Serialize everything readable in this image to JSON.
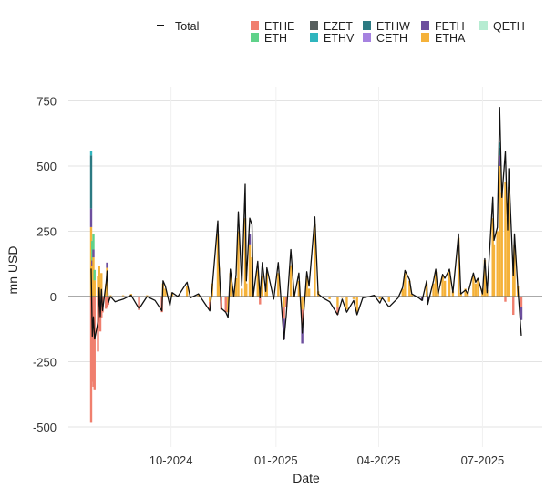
{
  "chart_data": {
    "type": "bar",
    "subtype": "stacked bar with total line",
    "xlabel": "Date",
    "ylabel": "mn USD",
    "ylim": [
      -560,
      800
    ],
    "yticks": [
      -500,
      -250,
      0,
      250,
      500,
      750
    ],
    "xticks": [
      {
        "date": "2024-10-01",
        "label": "10-2024"
      },
      {
        "date": "2025-01-01",
        "label": "01-2025"
      },
      {
        "date": "2025-04-01",
        "label": "04-2025"
      },
      {
        "date": "2025-07-01",
        "label": "07-2025"
      }
    ],
    "grid": true,
    "legend_position": "top",
    "legend": {
      "line": {
        "name": "Total",
        "color": "#111111"
      },
      "items": [
        {
          "name": "ETHE",
          "color": "#f07f6e"
        },
        {
          "name": "EZET",
          "color": "#575f5e"
        },
        {
          "name": "ETHW",
          "color": "#2c7a82"
        },
        {
          "name": "FETH",
          "color": "#6d4f9e"
        },
        {
          "name": "QETH",
          "color": "#b6ecd2"
        },
        {
          "name": "ETH",
          "color": "#5fd28a"
        },
        {
          "name": "ETHV",
          "color": "#2fb5be"
        },
        {
          "name": "CETH",
          "color": "#a682e0"
        },
        {
          "name": "ETHA",
          "color": "#f5b23a"
        }
      ]
    },
    "dates": [
      "2024-07-23",
      "2024-07-24",
      "2024-07-25",
      "2024-07-26",
      "2024-07-29",
      "2024-07-30",
      "2024-07-31",
      "2024-08-01",
      "2024-08-02",
      "2024-08-05",
      "2024-08-06",
      "2024-08-07",
      "2024-08-09",
      "2024-08-13",
      "2024-08-20",
      "2024-08-27",
      "2024-09-03",
      "2024-09-10",
      "2024-09-17",
      "2024-09-23",
      "2024-09-24",
      "2024-09-26",
      "2024-09-30",
      "2024-10-02",
      "2024-10-07",
      "2024-10-15",
      "2024-10-18",
      "2024-10-25",
      "2024-11-04",
      "2024-11-06",
      "2024-11-11",
      "2024-11-12",
      "2024-11-14",
      "2024-11-18",
      "2024-11-20",
      "2024-11-22",
      "2024-11-25",
      "2024-11-27",
      "2024-11-29",
      "2024-12-02",
      "2024-12-05",
      "2024-12-06",
      "2024-12-09",
      "2024-12-11",
      "2024-12-12",
      "2024-12-16",
      "2024-12-18",
      "2024-12-20",
      "2024-12-23",
      "2024-12-24",
      "2024-12-30",
      "2025-01-03",
      "2025-01-08",
      "2025-01-10",
      "2025-01-14",
      "2025-01-17",
      "2025-01-21",
      "2025-01-24",
      "2025-01-28",
      "2025-01-30",
      "2025-02-04",
      "2025-02-07",
      "2025-02-11",
      "2025-02-17",
      "2025-02-24",
      "2025-02-28",
      "2025-03-04",
      "2025-03-10",
      "2025-03-13",
      "2025-03-18",
      "2025-03-24",
      "2025-03-28",
      "2025-04-02",
      "2025-04-04",
      "2025-04-10",
      "2025-04-18",
      "2025-04-22",
      "2025-04-24",
      "2025-04-28",
      "2025-04-30",
      "2025-05-06",
      "2025-05-09",
      "2025-05-13",
      "2025-05-14",
      "2025-05-19",
      "2025-05-21",
      "2025-05-23",
      "2025-05-27",
      "2025-05-29",
      "2025-06-02",
      "2025-06-05",
      "2025-06-10",
      "2025-06-12",
      "2025-06-16",
      "2025-06-18",
      "2025-06-23",
      "2025-06-25",
      "2025-06-27",
      "2025-07-01",
      "2025-07-03",
      "2025-07-05",
      "2025-07-10",
      "2025-07-11",
      "2025-07-14",
      "2025-07-16",
      "2025-07-18",
      "2025-07-21",
      "2025-07-23",
      "2025-07-24",
      "2025-07-28",
      "2025-07-29",
      "2025-08-01",
      "2025-08-04"
    ],
    "total": [
      107,
      -152,
      -78,
      -163,
      -98,
      33,
      -77,
      27,
      -54,
      49,
      98,
      -24,
      0,
      -20,
      -10,
      5,
      -47,
      0,
      -15,
      -55,
      60,
      40,
      -35,
      15,
      0,
      55,
      -5,
      10,
      -55,
      30,
      290,
      135,
      -45,
      -60,
      -80,
      105,
      0,
      85,
      325,
      40,
      430,
      60,
      300,
      275,
      0,
      135,
      -5,
      130,
      20,
      110,
      -10,
      130,
      -165,
      -70,
      180,
      0,
      90,
      -140,
      95,
      40,
      305,
      10,
      -5,
      -20,
      -70,
      -10,
      -60,
      -15,
      -70,
      -5,
      0,
      5,
      -25,
      -5,
      -40,
      -5,
      35,
      100,
      65,
      10,
      -5,
      -15,
      60,
      -30,
      60,
      105,
      10,
      85,
      70,
      105,
      15,
      240,
      10,
      25,
      10,
      90,
      55,
      70,
      10,
      145,
      15,
      380,
      215,
      265,
      725,
      380,
      555,
      255,
      490,
      80,
      240,
      30,
      -150
    ],
    "ETHA": [
      266,
      118,
      150,
      62,
      80,
      118,
      50,
      90,
      0,
      48,
      110,
      0,
      5,
      0,
      5,
      10,
      0,
      5,
      0,
      0,
      50,
      30,
      0,
      15,
      0,
      40,
      0,
      10,
      -20,
      50,
      240,
      110,
      0,
      0,
      -60,
      90,
      20,
      70,
      250,
      30,
      300,
      50,
      200,
      150,
      10,
      100,
      20,
      80,
      40,
      90,
      0,
      90,
      -40,
      0,
      120,
      10,
      60,
      -50,
      80,
      30,
      280,
      20,
      0,
      -10,
      -40,
      -5,
      -50,
      -10,
      -60,
      0,
      0,
      5,
      -10,
      0,
      -20,
      0,
      30,
      90,
      60,
      10,
      0,
      0,
      50,
      0,
      50,
      95,
      20,
      80,
      60,
      95,
      20,
      225,
      15,
      30,
      20,
      80,
      50,
      70,
      30,
      140,
      25,
      300,
      200,
      250,
      500,
      400,
      440,
      300,
      420,
      150,
      200,
      40,
      0
    ],
    "components": {
      "ETHE": {
        "2024-07-23": -484,
        "2024-07-24": -327,
        "2024-07-25": -346,
        "2024-07-26": -356,
        "2024-07-29": -211,
        "2024-07-30": -120,
        "2024-07-31": -134,
        "2024-08-01": -80,
        "2024-08-02": -61,
        "2024-08-05": -47,
        "2024-08-06": -39,
        "2024-08-07": -32,
        "2024-09-03": -52,
        "2024-09-23": -60,
        "2024-11-04": -30,
        "2024-11-14": -50,
        "2024-11-18": -60,
        "2024-12-18": -30,
        "2025-01-08": -45,
        "2025-01-10": -40,
        "2025-01-24": -60,
        "2025-02-24": -30,
        "2025-07-21": -20,
        "2025-07-28": -70,
        "2025-08-04": -40
      },
      "FETH": {
        "2024-07-23": 71,
        "2024-07-24": 20,
        "2024-07-25": 30,
        "2024-08-06": 20,
        "2024-12-09": 40,
        "2025-01-08": -80,
        "2025-01-24": -70,
        "2025-05-09": -15,
        "2025-05-14": -20,
        "2025-07-16": 40,
        "2025-08-04": -50
      },
      "ETHW": {
        "2024-07-23": 204,
        "2025-07-16": 30
      },
      "ETH": {
        "2024-07-24": 75,
        "2024-07-25": 60,
        "2024-07-26": 40
      },
      "ETHV": {
        "2024-07-23": 15,
        "2025-07-16": 20
      }
    }
  }
}
